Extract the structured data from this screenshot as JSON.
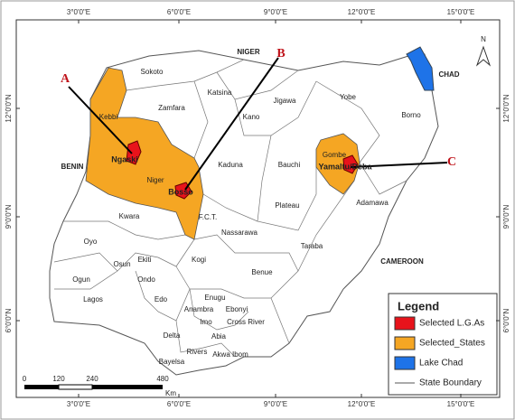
{
  "map": {
    "graticule": {
      "longitudes": [
        "3°0'0\"E",
        "6°0'0\"E",
        "9°0'0\"E",
        "12°0'0\"E",
        "15°0'0\"E"
      ],
      "latitudes": [
        "12°0'0\"N",
        "9°0'0\"N",
        "6°0'0\"N"
      ]
    },
    "north": "N",
    "countries": [
      "NIGER",
      "CHAD",
      "BENIN",
      "CAMEROON"
    ],
    "states": [
      "Sokoto",
      "Katsina",
      "Zamfara",
      "Kebbi",
      "Kano",
      "Jigawa",
      "Yobe",
      "Borno",
      "Gombe",
      "Bauchi",
      "Kaduna",
      "Niger",
      "Plateau",
      "Adamawa",
      "F.C.T.",
      "Kwara",
      "Nassarawa",
      "Taraba",
      "Oyo",
      "Kogi",
      "Benue",
      "Osun",
      "Ekiti",
      "Ondo",
      "Ogun",
      "Lagos",
      "Edo",
      "Enugu",
      "Ebonyi",
      "Anambra",
      "Imo",
      "Cross River",
      "Abia",
      "Delta",
      "Akwa Ibom",
      "Rivers",
      "Bayelsa"
    ],
    "lgas": [
      "Ngaski",
      "Bosso",
      "Yamaltu/Deba"
    ],
    "markers": [
      "A",
      "B",
      "C"
    ],
    "legend": {
      "title": "Legend",
      "items": [
        {
          "label": "Selected L.G.As",
          "color": "#e8131b"
        },
        {
          "label": "Selected_States",
          "color": "#f5a623"
        },
        {
          "label": "Lake Chad",
          "color": "#1e73e8"
        },
        {
          "label": "State Boundary"
        }
      ]
    },
    "scale": {
      "labels": [
        "0",
        "120",
        "240",
        "480"
      ],
      "unit": "Km"
    }
  }
}
